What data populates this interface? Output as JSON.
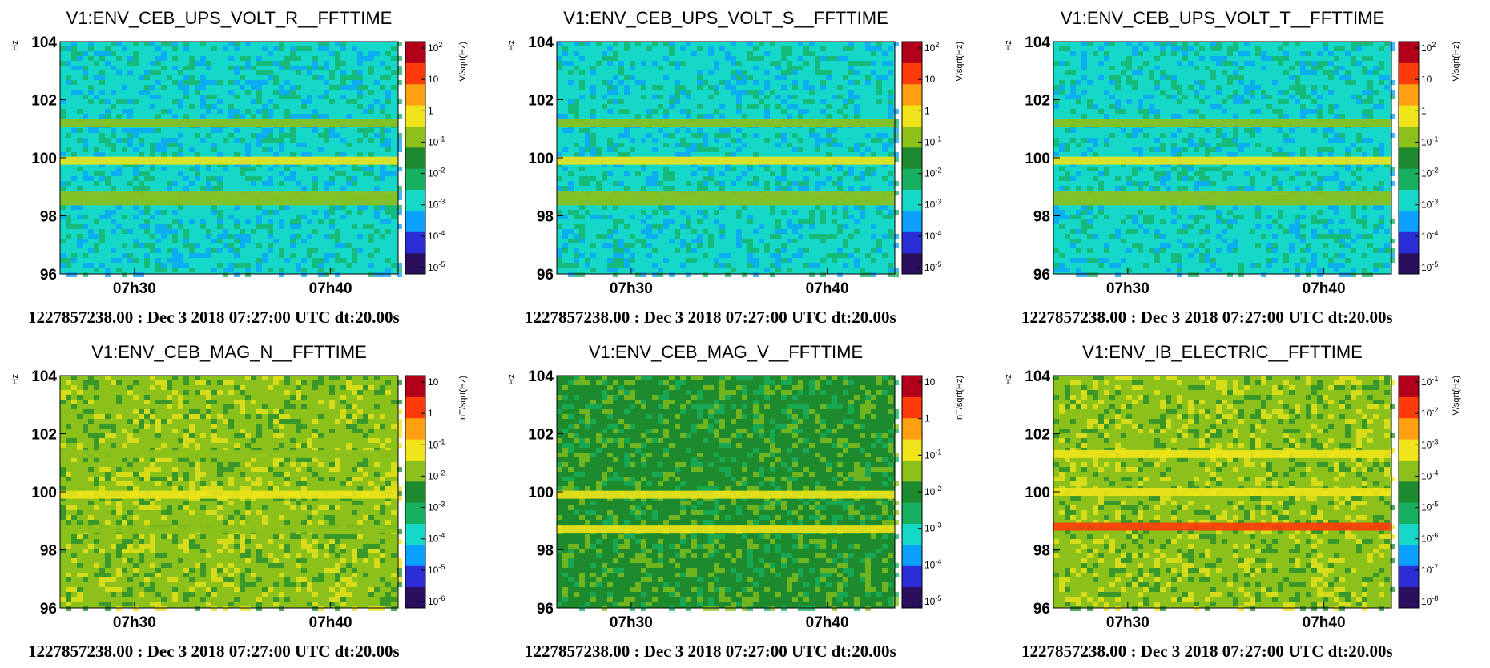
{
  "chart_data": [
    {
      "type": "heatmap",
      "title": "V1:ENV_CEB_UPS_VOLT_R__FFTTIME",
      "ylabel": "Hz",
      "ylim": [
        96,
        104
      ],
      "yticks": [
        "104",
        "102",
        "100",
        "98",
        "96"
      ],
      "xticks": [
        "07h30",
        "07h40"
      ],
      "colorbar_label": "V/sqrt(Hz)",
      "colorbar_ticks": [
        "10^2",
        "10",
        "1",
        "10^-1",
        "10^-2",
        "10^-3",
        "10^-4",
        "10^-5"
      ],
      "background_level": "10^-3",
      "lines": [
        {
          "freq_hz": 99.9,
          "level": "1"
        },
        {
          "freq_hz": 101.2,
          "level": "10^-1"
        },
        {
          "freq_hz": 98.7,
          "level": "10^-1"
        },
        {
          "freq_hz": 98.5,
          "level": "10^-1"
        }
      ],
      "footer": "1227857238.00 : Dec  3 2018 07:27:00 UTC dt:20.00s"
    },
    {
      "type": "heatmap",
      "title": "V1:ENV_CEB_UPS_VOLT_S__FFTTIME",
      "ylabel": "Hz",
      "ylim": [
        96,
        104
      ],
      "yticks": [
        "104",
        "102",
        "100",
        "98",
        "96"
      ],
      "xticks": [
        "07h30",
        "07h40"
      ],
      "colorbar_label": "V/sqrt(Hz)",
      "colorbar_ticks": [
        "10^2",
        "10",
        "1",
        "10^-1",
        "10^-2",
        "10^-3",
        "10^-4",
        "10^-5"
      ],
      "background_level": "10^-3",
      "lines": [
        {
          "freq_hz": 99.9,
          "level": "1"
        },
        {
          "freq_hz": 101.2,
          "level": "10^-1"
        },
        {
          "freq_hz": 98.7,
          "level": "10^-1"
        },
        {
          "freq_hz": 98.5,
          "level": "10^-1"
        }
      ],
      "footer": "1227857238.00 : Dec  3 2018 07:27:00 UTC dt:20.00s"
    },
    {
      "type": "heatmap",
      "title": "V1:ENV_CEB_UPS_VOLT_T__FFTTIME",
      "ylabel": "Hz",
      "ylim": [
        96,
        104
      ],
      "yticks": [
        "104",
        "102",
        "100",
        "98",
        "96"
      ],
      "xticks": [
        "07h30",
        "07h40"
      ],
      "colorbar_label": "V/sqrt(Hz)",
      "colorbar_ticks": [
        "10^2",
        "10",
        "1",
        "10^-1",
        "10^-2",
        "10^-3",
        "10^-4",
        "10^-5"
      ],
      "background_level": "10^-3",
      "lines": [
        {
          "freq_hz": 99.9,
          "level": "1"
        },
        {
          "freq_hz": 101.2,
          "level": "10^-1"
        },
        {
          "freq_hz": 98.7,
          "level": "10^-1"
        },
        {
          "freq_hz": 98.5,
          "level": "10^-1"
        }
      ],
      "footer": "1227857238.00 : Dec  3 2018 07:27:00 UTC dt:20.00s"
    },
    {
      "type": "heatmap",
      "title": "V1:ENV_CEB_MAG_N__FFTTIME",
      "ylabel": "Hz",
      "ylim": [
        96,
        104
      ],
      "yticks": [
        "104",
        "102",
        "100",
        "98",
        "96"
      ],
      "xticks": [
        "07h30",
        "07h40"
      ],
      "colorbar_label": "nT/sqrt(Hz)",
      "colorbar_ticks": [
        "10",
        "1",
        "10^-1",
        "10^-2",
        "10^-3",
        "10^-4",
        "10^-5",
        "10^-6"
      ],
      "background_level": "10^-2",
      "lines": [
        {
          "freq_hz": 99.9,
          "level": "10^-1"
        },
        {
          "freq_hz": 101.3,
          "level": "10^-2"
        },
        {
          "freq_hz": 98.7,
          "level": "10^-2"
        }
      ],
      "footer": "1227857238.00 : Dec  3 2018 07:27:00 UTC dt:20.00s"
    },
    {
      "type": "heatmap",
      "title": "V1:ENV_CEB_MAG_V__FFTTIME",
      "ylabel": "Hz",
      "ylim": [
        96,
        104
      ],
      "yticks": [
        "104",
        "102",
        "100",
        "98",
        "96"
      ],
      "xticks": [
        "07h30",
        "07h40"
      ],
      "colorbar_label": "nT/sqrt(Hz)",
      "colorbar_ticks": [
        "10",
        "1",
        "10^-1",
        "10^-2",
        "10^-3",
        "10^-4",
        "10^-5"
      ],
      "background_level": "10^-2",
      "lines": [
        {
          "freq_hz": 99.9,
          "level": "10^-1"
        },
        {
          "freq_hz": 98.7,
          "level": "10^-1"
        }
      ],
      "footer": "1227857238.00 : Dec  3 2018 07:27:00 UTC dt:20.00s"
    },
    {
      "type": "heatmap",
      "title": "V1:ENV_IB_ELECTRIC__FFTTIME",
      "ylabel": "Hz",
      "ylim": [
        96,
        104
      ],
      "yticks": [
        "104",
        "102",
        "100",
        "98",
        "96"
      ],
      "xticks": [
        "07h30",
        "07h40"
      ],
      "colorbar_label": "V/sqrt(Hz)",
      "colorbar_ticks": [
        "10^-1",
        "10^-2",
        "10^-3",
        "10^-4",
        "10^-5",
        "10^-6",
        "10^-7",
        "10^-8"
      ],
      "background_level": "10^-4",
      "lines": [
        {
          "freq_hz": 101.3,
          "level": "10^-3"
        },
        {
          "freq_hz": 100.0,
          "level": "10^-3"
        },
        {
          "freq_hz": 98.8,
          "level": "10^-2"
        }
      ],
      "footer": "1227857238.00 : Dec  3 2018 07:27:00 UTC dt:20.00s"
    }
  ],
  "colors": {
    "cyan_background": "#1fd6c8",
    "green_background": "#1e9a4a",
    "line_yellow": "#c9dc20",
    "line_dark_green": "#1f7a3a",
    "colorbar_stops": [
      "#2a0f5e",
      "#2b2ed6",
      "#0aa0ff",
      "#16d8c8",
      "#17b060",
      "#1d8a2e",
      "#8cc11c",
      "#f0e41a",
      "#ffa010",
      "#ff3a0a",
      "#b2001a"
    ]
  }
}
